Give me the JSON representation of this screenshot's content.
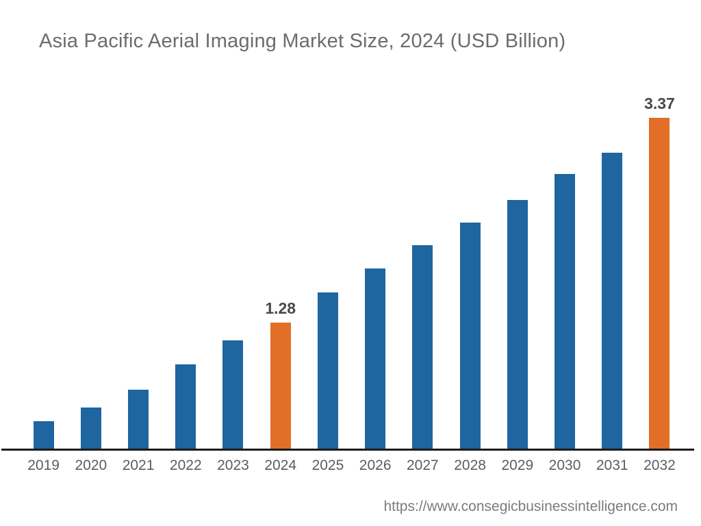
{
  "source_url": "https://www.consegicbusinessintelligence.com",
  "colors": {
    "bar_default": "#1F65A0",
    "bar_highlight": "#E26E28",
    "axis_line": "#1B1B1B",
    "title_text": "#6B6C6E",
    "data_label_text": "#48494B",
    "tick_text": "#5B5C5E",
    "url_text": "#7B7C7F"
  },
  "chart_data": {
    "type": "bar",
    "title": "Asia Pacific Aerial Imaging Market Size, 2024 (USD Billion)",
    "xlabel": "",
    "ylabel": "",
    "categories": [
      "2019",
      "2020",
      "2021",
      "2022",
      "2023",
      "2024",
      "2025",
      "2026",
      "2027",
      "2028",
      "2029",
      "2030",
      "2031",
      "2032"
    ],
    "values": [
      0.28,
      0.42,
      0.6,
      0.86,
      1.1,
      1.28,
      1.59,
      1.83,
      2.07,
      2.3,
      2.53,
      2.79,
      3.01,
      3.37
    ],
    "highlight_indices": [
      5,
      13
    ],
    "data_labels": [
      {
        "index": 5,
        "text": "1.28"
      },
      {
        "index": 13,
        "text": "3.37"
      }
    ],
    "ylim": [
      0,
      3.6
    ],
    "grid": false,
    "legend": false,
    "y_axis_shown": false,
    "x_axis_line": true
  }
}
